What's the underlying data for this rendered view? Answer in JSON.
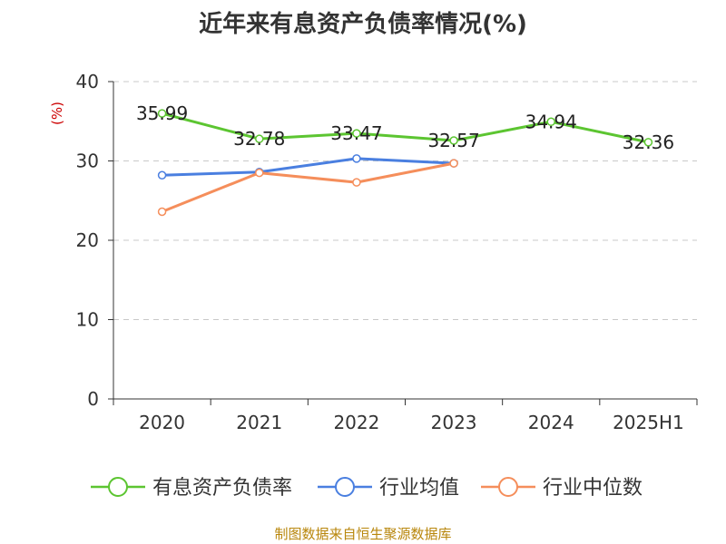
{
  "title": "近年来有息资产负债率情况(%)",
  "source": "制图数据来自恒生聚源数据库",
  "colors": {
    "series1": "#5cc531",
    "series2": "#4a7fe0",
    "series3": "#f58e5b",
    "yunit": "#cc0000",
    "grid": "#c8c8c8",
    "axis": "#333333"
  },
  "chart_data": {
    "type": "line",
    "title": "近年来有息资产负债率情况(%)",
    "ylabel": "(%)",
    "ylim": [
      0,
      40
    ],
    "yticks": [
      0,
      10,
      20,
      30,
      40
    ],
    "grid": "horizontal dashed",
    "legend_position": "bottom",
    "categories": [
      "2020",
      "2021",
      "2022",
      "2023",
      "2024",
      "2025H1"
    ],
    "series": [
      {
        "name": "有息资产负债率",
        "values": [
          35.99,
          32.78,
          33.47,
          32.57,
          34.94,
          32.36
        ],
        "labels": [
          "35.99",
          "32.78",
          "33.47",
          "32.57",
          "34.94",
          "32.36"
        ]
      },
      {
        "name": "行业均值",
        "values": [
          28.2,
          28.6,
          30.3,
          29.7,
          null,
          null
        ]
      },
      {
        "name": "行业中位数",
        "values": [
          23.6,
          28.5,
          27.3,
          29.7,
          null,
          null
        ]
      }
    ]
  }
}
